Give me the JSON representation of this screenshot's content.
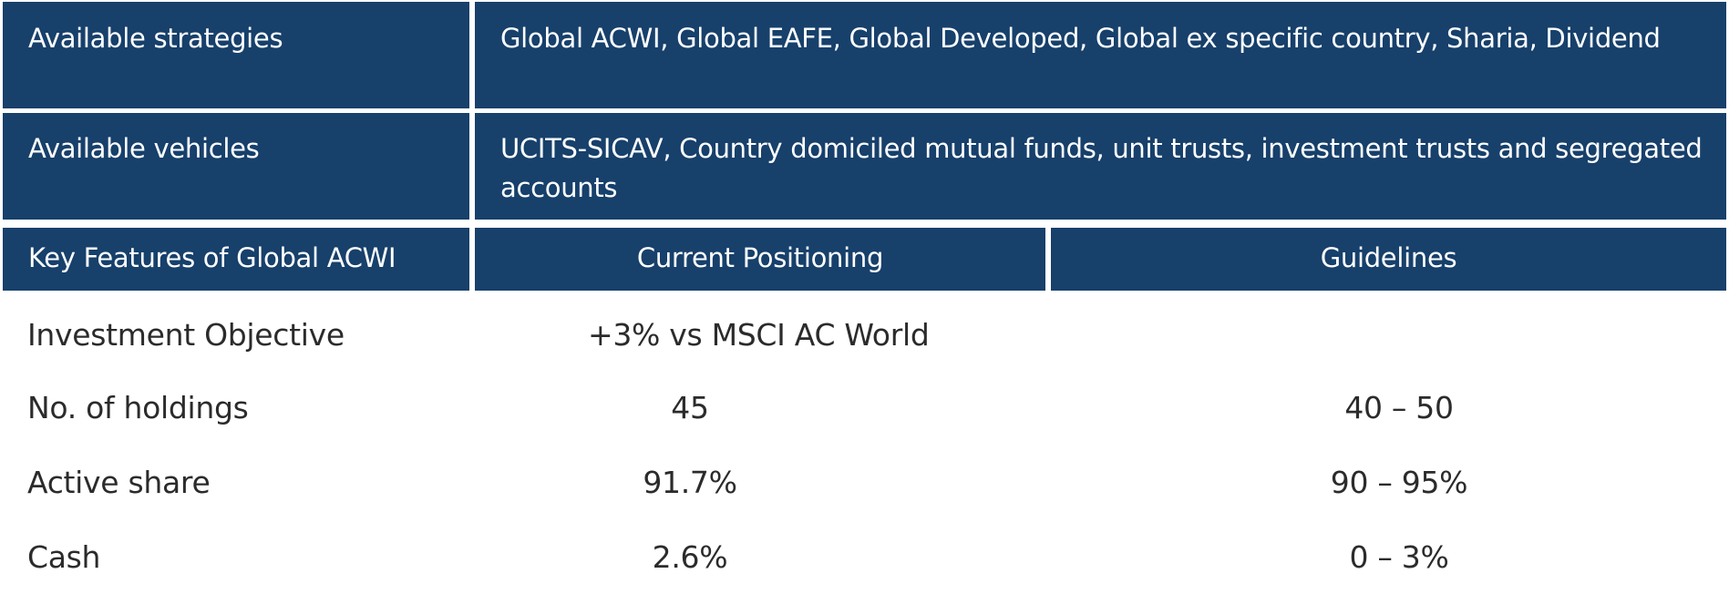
{
  "strategies": {
    "label": "Available strategies",
    "value": "Global ACWI, Global EAFE, Global Developed, Global ex specific country, Sharia, Dividend"
  },
  "vehicles": {
    "label": "Available vehicles",
    "value": "UCITS-SICAV, Country domiciled mutual funds, unit trusts, investment trusts and segregated accounts"
  },
  "features_header": {
    "key": "Key Features of Global ACWI",
    "positioning": "Current Positioning",
    "guidelines": "Guidelines"
  },
  "rows": [
    {
      "feature": "Investment Objective",
      "positioning": "+3% vs MSCI AC World",
      "guidelines": ""
    },
    {
      "feature": "No. of holdings",
      "positioning": "45",
      "guidelines": "40 – 50"
    },
    {
      "feature": "Active share",
      "positioning": "91.7%",
      "guidelines": "90 – 95%"
    },
    {
      "feature": "Cash",
      "positioning": "2.6%",
      "guidelines": "0 – 3%"
    }
  ],
  "colors": {
    "header_bg": "#17406b",
    "header_text": "#ffffff",
    "body_text": "#2b2b2b"
  }
}
